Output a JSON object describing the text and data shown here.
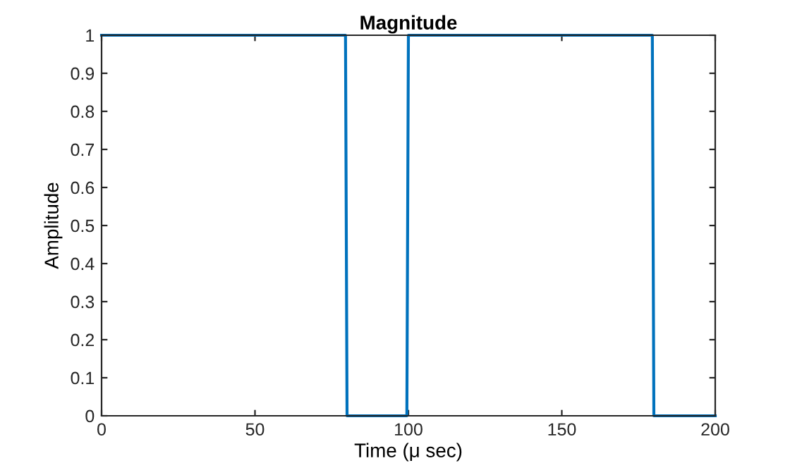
{
  "chart_data": {
    "type": "line",
    "title": "Magnitude",
    "xlabel": "Time (μ sec)",
    "ylabel": "Amplitude",
    "x": [
      0,
      79.5,
      80,
      99.5,
      100,
      179.5,
      180,
      200
    ],
    "series": [
      {
        "color": "#0072bd",
        "values": [
          1,
          1,
          0,
          0,
          1,
          1,
          0,
          0
        ]
      }
    ],
    "xlim": [
      0,
      200
    ],
    "xticks": [
      0,
      50,
      100,
      150,
      200
    ],
    "ylim": [
      0,
      1
    ],
    "yticks": [
      0,
      0.1,
      0.2,
      0.3,
      0.4,
      0.5,
      0.6,
      0.7,
      0.8,
      0.9,
      1
    ],
    "grid": false,
    "legend": false
  }
}
